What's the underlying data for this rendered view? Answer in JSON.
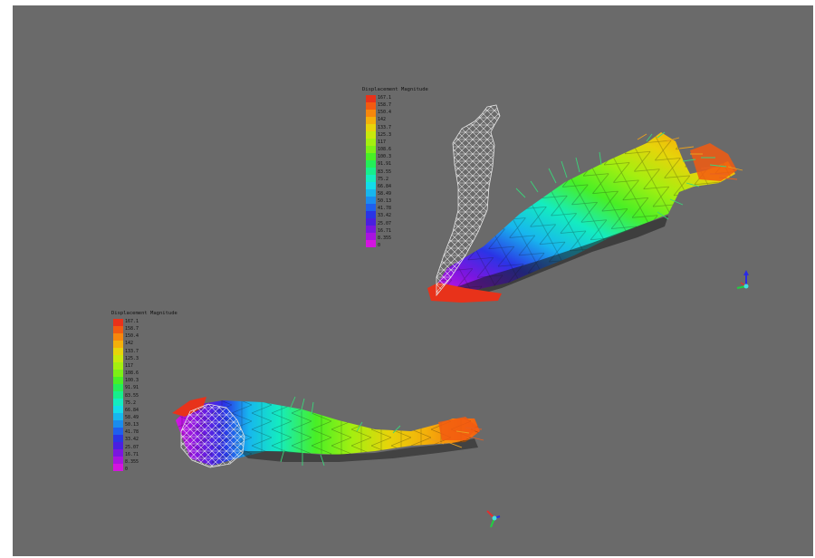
{
  "window": {
    "background": "#6a6a6a"
  },
  "legend_top": {
    "title": "Displacement Magnitude",
    "labels": [
      "167.1",
      "158.7",
      "150.4",
      "142",
      "133.7",
      "125.3",
      "117",
      "108.6",
      "100.3",
      "91.91",
      "83.55",
      "75.2",
      "66.84",
      "58.49",
      "50.13",
      "41.78",
      "33.42",
      "25.07",
      "16.71",
      "8.355",
      "0"
    ]
  },
  "legend_bottom": {
    "title": "Displacement Magnitude",
    "labels": [
      "167.1",
      "158.7",
      "150.4",
      "142",
      "133.7",
      "125.3",
      "117",
      "108.6",
      "100.3",
      "91.91",
      "83.55",
      "75.2",
      "66.84",
      "58.49",
      "50.13",
      "41.78",
      "33.42",
      "25.07",
      "16.71",
      "8.355",
      "0"
    ]
  },
  "colormap": [
    "#e8321a",
    "#f25a10",
    "#f7870c",
    "#f4b00a",
    "#e7d40a",
    "#c8e80c",
    "#a4ef10",
    "#7cf016",
    "#48ef26",
    "#23ee58",
    "#17ee8c",
    "#14ecc0",
    "#14dcea",
    "#17b6ee",
    "#1a8cee",
    "#1f5fee",
    "#2a34e6",
    "#4a1fe0",
    "#7a16e0",
    "#a813e0",
    "#d414e0"
  ],
  "icons": {
    "axis_top": "axis-triad-icon",
    "axis_bottom": "axis-triad-icon"
  }
}
